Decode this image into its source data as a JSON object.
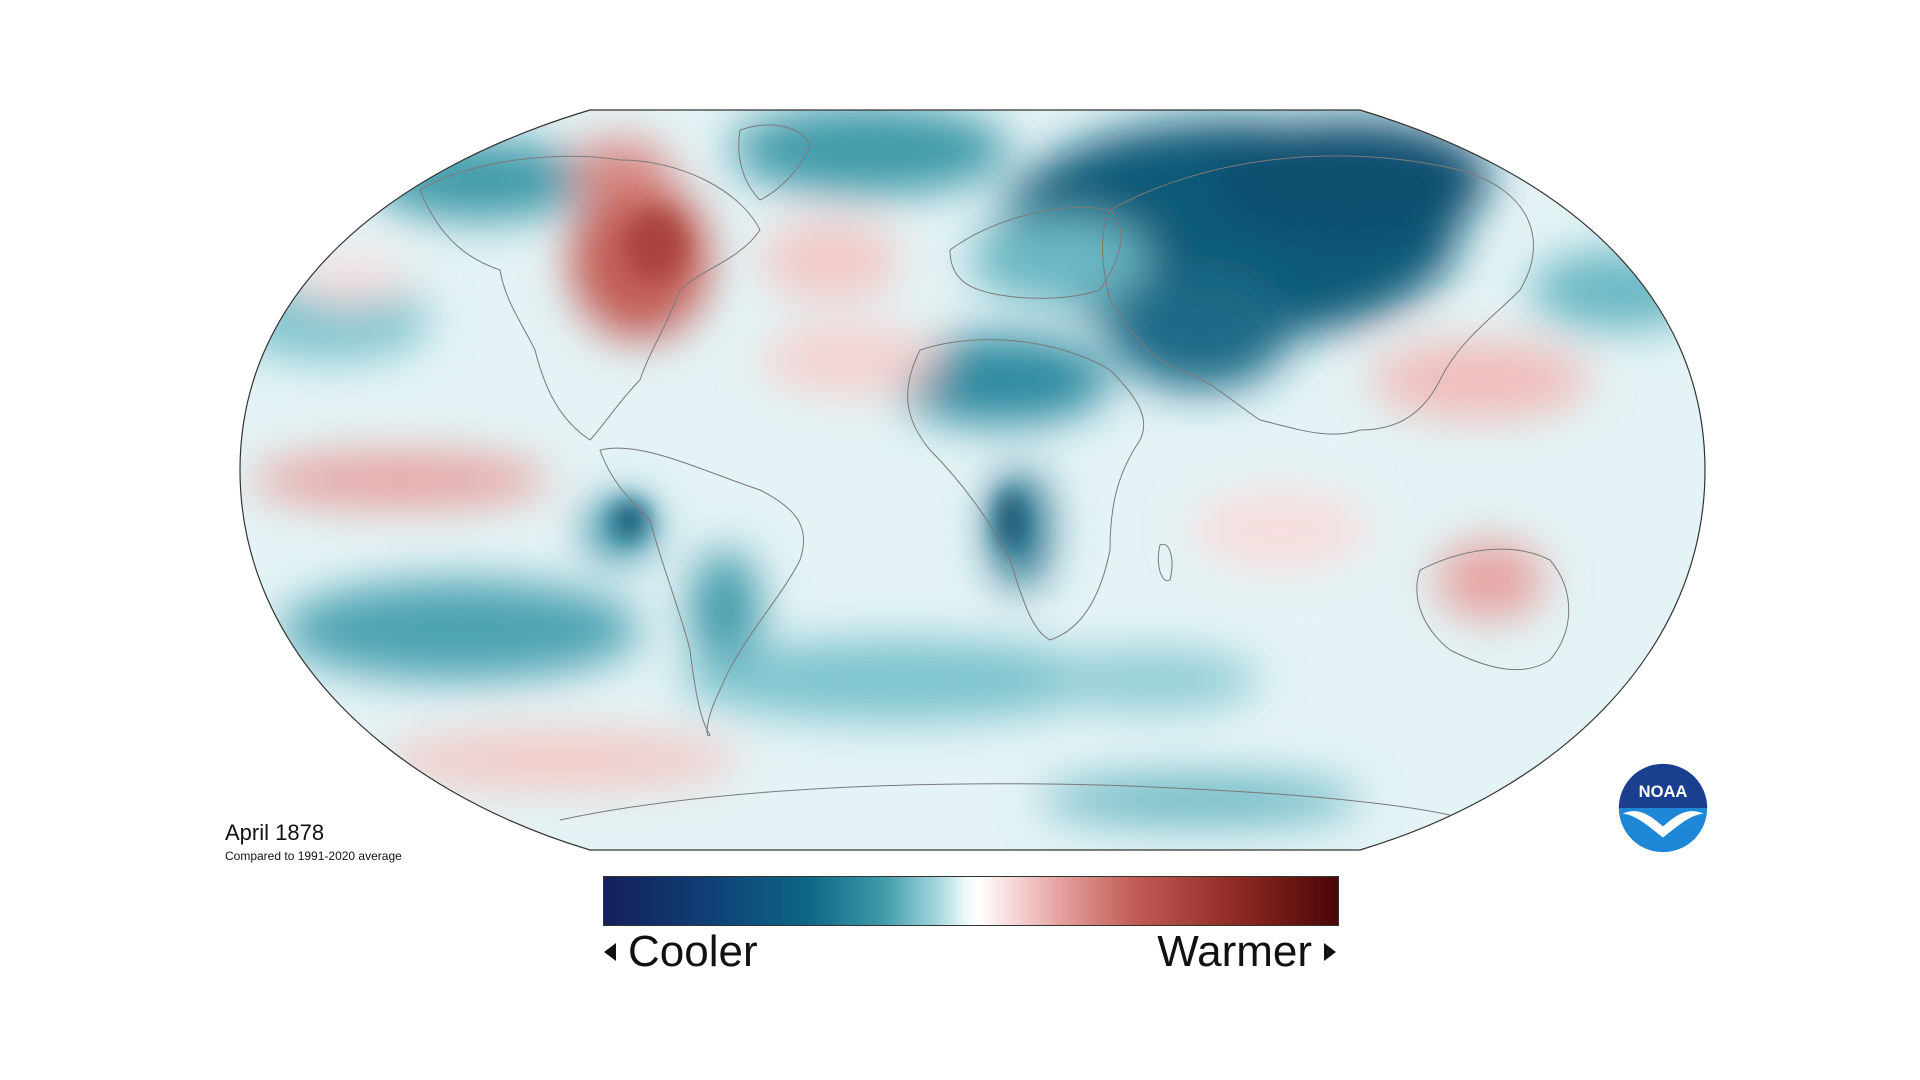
{
  "map": {
    "date": "April 1878",
    "baseline": "Compared to 1991-2020 average",
    "projection": "Robinson",
    "variable": "surface temperature anomaly",
    "palette": {
      "cool_dark": "#15205b",
      "cool_mid": "#0e6786",
      "cool_light": "#9dd4db",
      "neutral": "#ffffff",
      "warm_light": "#f7dede",
      "warm_mid": "#c25d57",
      "warm_dark": "#4a0707"
    }
  },
  "legend": {
    "cooler_label": "Cooler",
    "warmer_label": "Warmer"
  },
  "logo": {
    "text": "NOAA",
    "icon": "noaa-logo-icon",
    "colors": {
      "top": "#1b3f8f",
      "bottom": "#1e88d6",
      "bird": "#ffffff"
    }
  }
}
